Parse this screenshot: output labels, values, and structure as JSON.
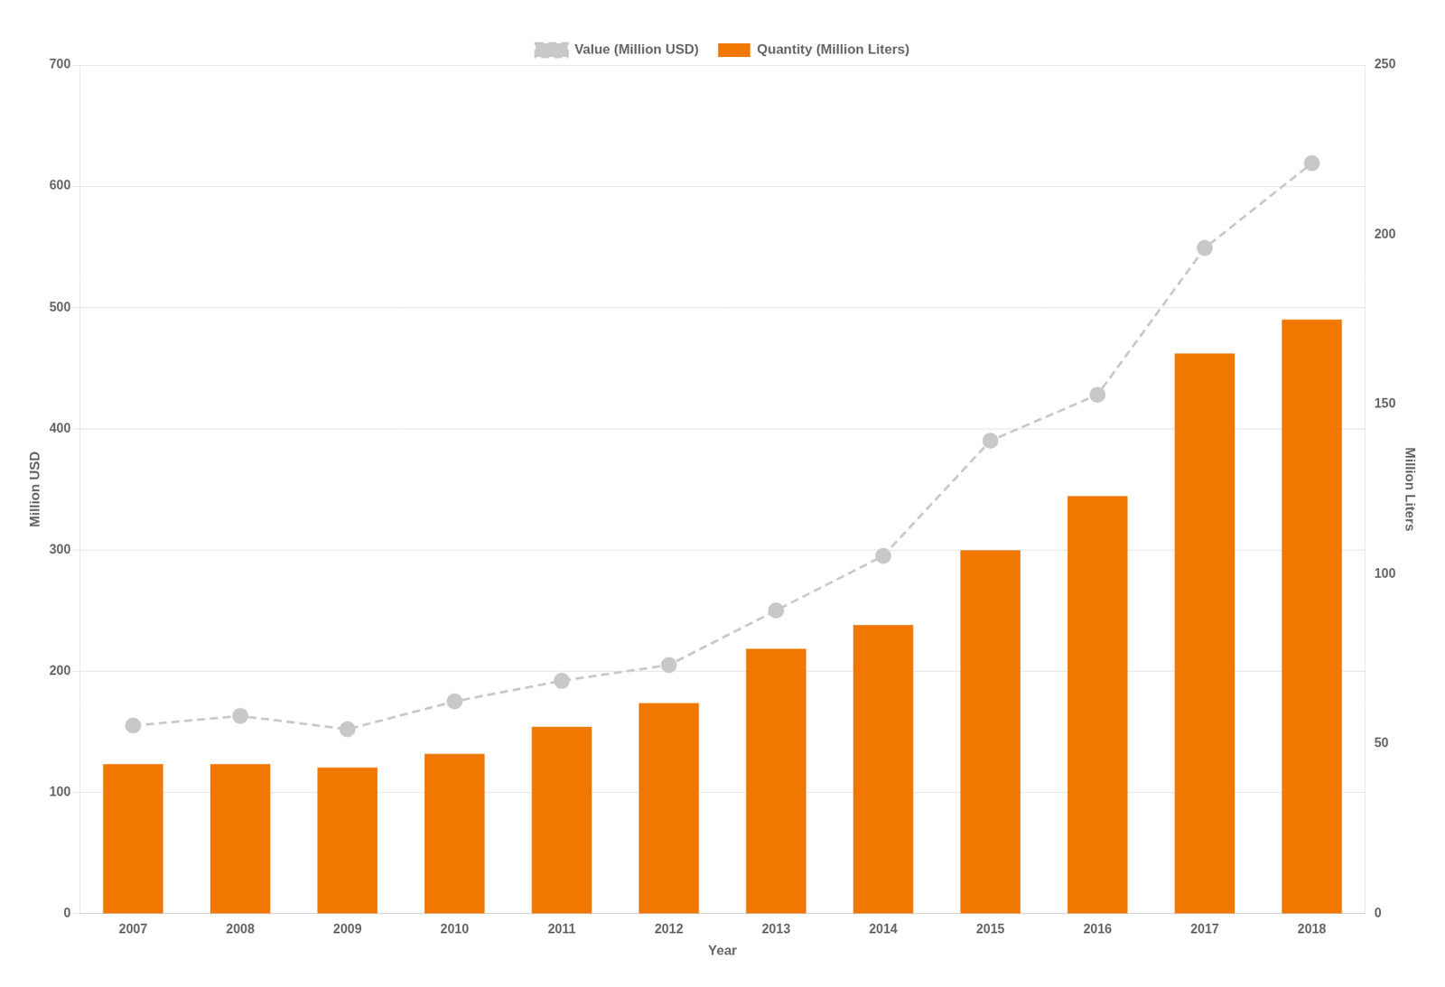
{
  "chart_data": {
    "type": "bar",
    "categories": [
      "2007",
      "2008",
      "2009",
      "2010",
      "2011",
      "2012",
      "2013",
      "2014",
      "2015",
      "2016",
      "2017",
      "2018"
    ],
    "x_label": "Year",
    "y_label": "Million USD",
    "y2_label": "Million Liters",
    "series": [
      {
        "name": "Value (Million USD)",
        "type": "line",
        "color": "#C8C8C8",
        "marker": "circle",
        "line_style": "dashed",
        "values": [
          155,
          163,
          152,
          175,
          192,
          205,
          250,
          295,
          390,
          428,
          549,
          619
        ]
      },
      {
        "name": "Quantity (Million Liters)",
        "type": "bar",
        "color": "#F07800",
        "axis": "y2",
        "values": [
          44,
          44,
          43,
          47,
          55,
          62,
          78,
          85,
          107,
          123,
          165,
          175
        ]
      }
    ],
    "ylim": [
      0,
      700
    ],
    "yticks": [
      0,
      100,
      200,
      300,
      400,
      500,
      600,
      700
    ],
    "y2lim": [
      0,
      250
    ],
    "y2ticks": [
      0,
      50,
      100,
      150,
      200,
      250
    ],
    "grid": true,
    "legend": "top"
  }
}
